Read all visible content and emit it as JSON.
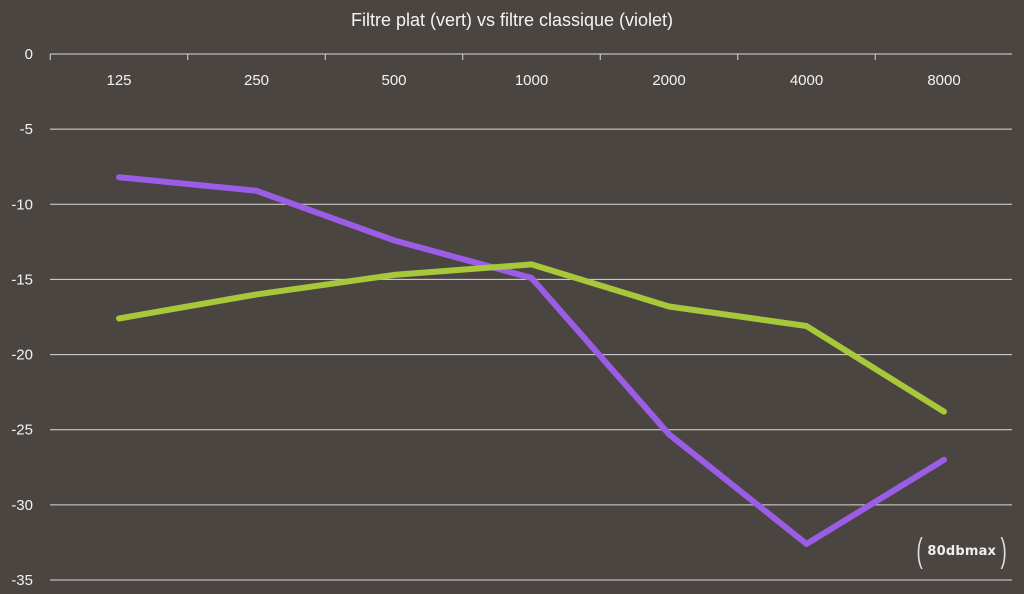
{
  "chart_data": {
    "type": "line",
    "title": "Filtre plat (vert) vs filtre classique (violet)",
    "xlabel": "",
    "ylabel": "",
    "categories": [
      "125",
      "250",
      "500",
      "1000",
      "2000",
      "4000",
      "8000"
    ],
    "ylim": [
      -35,
      0
    ],
    "yticks": [
      0,
      -5,
      -10,
      -15,
      -20,
      -25,
      -30,
      -35
    ],
    "grid": true,
    "series": [
      {
        "color": "#9b5de5",
        "values": [
          -8.2,
          -9.1,
          -12.4,
          -14.9,
          -25.3,
          -32.6,
          -27.0
        ]
      },
      {
        "color": "#a6c83a",
        "values": [
          -17.6,
          -16.0,
          -14.7,
          -14.0,
          -16.8,
          -18.1,
          -23.8
        ]
      }
    ]
  },
  "watermark": {
    "text": "80dbmax"
  }
}
